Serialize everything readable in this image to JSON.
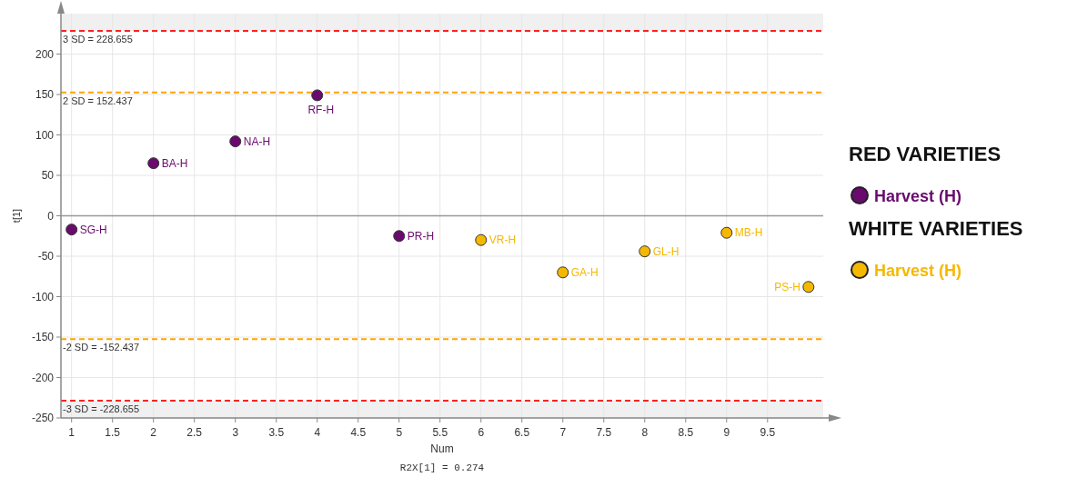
{
  "chart_data": {
    "type": "scatter",
    "xlabel": "Num",
    "ylabel": "t[1]",
    "xlim": [
      0.87,
      10.18
    ],
    "ylim": [
      -250,
      250
    ],
    "xticks": [
      1,
      1.5,
      2,
      2.5,
      3,
      3.5,
      4,
      4.5,
      5,
      5.5,
      6,
      6.5,
      7,
      7.5,
      8,
      8.5,
      9,
      9.5
    ],
    "yticks": [
      -250,
      -200,
      -150,
      -100,
      -50,
      0,
      50,
      100,
      150,
      200
    ],
    "grid": true,
    "marker": "circle",
    "legend": "right",
    "series": [
      {
        "name": "Harvest (H)",
        "color": "#6a0a6e",
        "x": [
          1,
          2,
          3,
          4,
          5
        ],
        "values": [
          -17,
          65,
          92,
          149,
          -25
        ]
      },
      {
        "name": "Harvest (H)",
        "color": "#f5b800",
        "x": [
          6,
          7,
          8,
          9,
          10
        ],
        "values": [
          -30,
          -70,
          -44,
          -21,
          -88
        ]
      }
    ],
    "ref_lines": [
      {
        "axis": "y",
        "value": 228.655,
        "label": "3 SD = 228.655",
        "color": "#ff2020",
        "line_style": "dashed"
      },
      {
        "axis": "y",
        "value": 152.437,
        "label": "2 SD = 152.437",
        "color": "#ffa500",
        "line_style": "dashed"
      },
      {
        "axis": "y",
        "value": -152.437,
        "label": "-2 SD = -152.437",
        "color": "#ffa500",
        "line_style": "dashed"
      },
      {
        "axis": "y",
        "value": -228.655,
        "label": "-3 SD = -228.655",
        "color": "#ff2020",
        "line_style": "dashed"
      }
    ],
    "bands": [
      {
        "axis": "y",
        "from": 228.655,
        "to": 250,
        "color": "#f0f0f0"
      },
      {
        "axis": "y",
        "from": -250,
        "to": -228.655,
        "color": "#f0f0f0"
      }
    ],
    "annotations": [
      {
        "text": "SG-H",
        "x": 1,
        "y": -17
      },
      {
        "text": "BA-H",
        "x": 2,
        "y": 65
      },
      {
        "text": "NA-H",
        "x": 3,
        "y": 92
      },
      {
        "text": "RF-H",
        "x": 4,
        "y": 149
      },
      {
        "text": "PR-H",
        "x": 5,
        "y": -25
      },
      {
        "text": "VR-H",
        "x": 6,
        "y": -30
      },
      {
        "text": "GA-H",
        "x": 7,
        "y": -70
      },
      {
        "text": "GL-H",
        "x": 8,
        "y": -44
      },
      {
        "text": "MB-H",
        "x": 9,
        "y": -21
      },
      {
        "text": "PS-H",
        "x": 10,
        "y": -88
      },
      "R2X[1] = 0.274",
      "RED VARIETIES",
      "WHITE VARIETIES"
    ]
  }
}
